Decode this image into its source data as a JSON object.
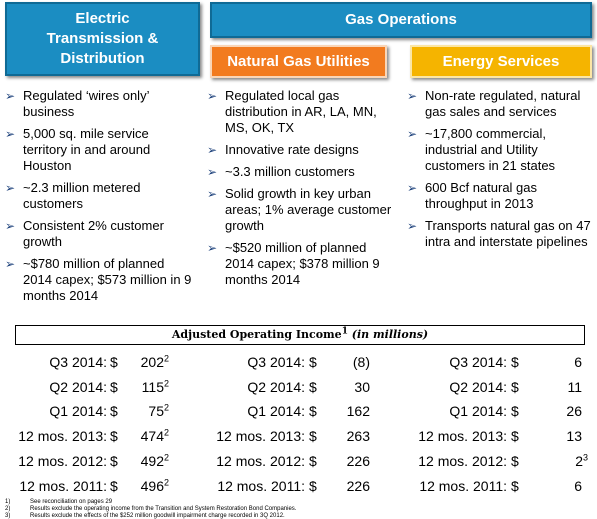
{
  "header": {
    "electric": "Electric Transmission & Distribution",
    "gas": "Gas Operations",
    "natural_gas": "Natural Gas Utilities",
    "energy": "Energy Services"
  },
  "columns": [
    {
      "bullets": [
        "Regulated ‘wires only’ business",
        "5,000 sq. mile service territory in and around Houston",
        "~2.3 million metered customers",
        "Consistent 2% customer growth",
        "~$780 million of planned 2014 capex; $573 million in 9 months 2014"
      ]
    },
    {
      "bullets": [
        "Regulated local gas distribution in AR, LA, MN, MS, OK, TX",
        "Innovative rate designs",
        "~3.3 million customers",
        "Solid growth in key urban areas; 1% average customer growth",
        "~$520 million of planned 2014 capex; $378 million 9 months 2014"
      ]
    },
    {
      "bullets": [
        "Non-rate regulated, natural gas sales and services",
        "~17,800 commercial, industrial and Utility customers in 21 states",
        "600 Bcf natural gas throughput in 2013",
        "Transports natural gas on 47 intra and interstate pipelines"
      ]
    }
  ],
  "income": {
    "title": "Adjusted Operating Income",
    "title_note": "1",
    "units": "(in millions)",
    "currency": "$",
    "rows": [
      {
        "cells": [
          {
            "label": "Q3 2014:",
            "value": "202",
            "note": "2"
          },
          {
            "label": "Q3 2014:",
            "value": "(8)"
          },
          {
            "label": "Q3 2014:",
            "value": "6"
          }
        ]
      },
      {
        "cells": [
          {
            "label": "Q2 2014:",
            "value": "115",
            "note": "2"
          },
          {
            "label": "Q2 2014:",
            "value": "30"
          },
          {
            "label": "Q2 2014:",
            "value": "11"
          }
        ]
      },
      {
        "cells": [
          {
            "label": "Q1 2014:",
            "value": "75",
            "note": "2"
          },
          {
            "label": "Q1 2014:",
            "value": "162"
          },
          {
            "label": "Q1 2014:",
            "value": "26"
          }
        ]
      },
      {
        "cells": [
          {
            "label": "12 mos. 2013:",
            "value": "474",
            "note": "2"
          },
          {
            "label": "12 mos. 2013:",
            "value": "263"
          },
          {
            "label": "12 mos. 2013:",
            "value": "13"
          }
        ]
      },
      {
        "cells": [
          {
            "label": "12 mos. 2012:",
            "value": "492",
            "note": "2"
          },
          {
            "label": "12 mos. 2012:",
            "value": "226"
          },
          {
            "label": "12 mos. 2012:",
            "value": "2",
            "note": "3"
          }
        ]
      },
      {
        "cells": [
          {
            "label": "12 mos. 2011:",
            "value": "496",
            "note": "2"
          },
          {
            "label": "12 mos. 2011:",
            "value": "226"
          },
          {
            "label": "12 mos. 2011:",
            "value": "6"
          }
        ]
      }
    ]
  },
  "footnotes": [
    {
      "marker": "1)",
      "text": "See reconciliation on pages 29"
    },
    {
      "marker": "2)",
      "text": "Results exclude the operating income from the Transition and System Restoration Bond Companies."
    },
    {
      "marker": "3)",
      "text": "Results exclude the effects of the $252 million goodwill impairment charge recorded in 3Q 2012."
    }
  ]
}
